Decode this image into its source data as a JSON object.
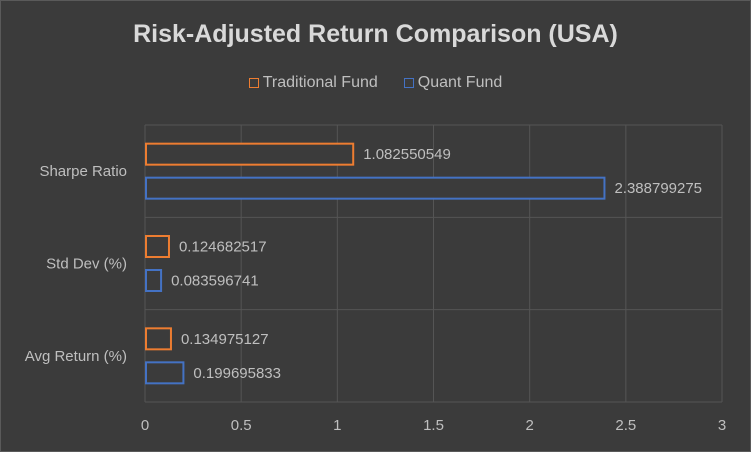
{
  "chart_data": {
    "type": "bar",
    "orientation": "horizontal",
    "title": "Risk-Adjusted Return Comparison (USA)",
    "categories": [
      "Avg Return (%)",
      "Std Dev (%)",
      "Sharpe Ratio"
    ],
    "series": [
      {
        "name": "Traditional Fund",
        "values": [
          0.134975127,
          0.124682517,
          1.082550549
        ],
        "labels": [
          "0.134975127",
          "0.124682517",
          "1.082550549"
        ],
        "color": "#ed7d31"
      },
      {
        "name": "Quant Fund",
        "values": [
          0.199695833,
          0.083596741,
          2.388799275
        ],
        "labels": [
          "0.199695833",
          "0.083596741",
          "2.388799275"
        ],
        "color": "#4472c4"
      }
    ],
    "xlim": [
      0,
      3
    ],
    "xticks": [
      "0",
      "0.5",
      "1",
      "1.5",
      "2",
      "2.5",
      "3"
    ],
    "xtick_values": [
      0,
      0.5,
      1,
      1.5,
      2,
      2.5,
      3
    ],
    "grid": true,
    "legend_position": "top"
  }
}
